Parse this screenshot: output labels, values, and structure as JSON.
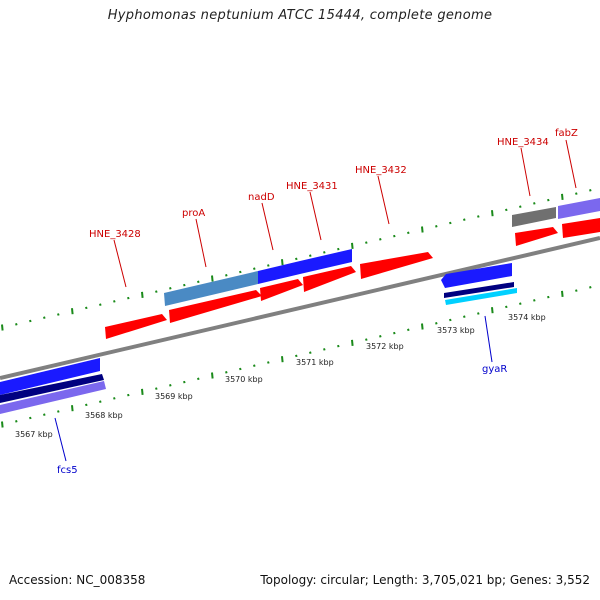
{
  "title": "Hyphomonas neptunium ATCC 15444, complete genome",
  "footer": {
    "accession": "Accession: NC_008358",
    "summary": "Topology: circular; Length: 3,705,021 bp; Genes: 3,552"
  },
  "colors": {
    "forward_cds": "#ff0000",
    "reverse_blue": "#1a1aff",
    "steel": "#4a8ac4",
    "gray": "#707070",
    "purple": "#7b68ee",
    "navy": "#000080",
    "cyan": "#00d0ff",
    "tick": "#1a8a1a",
    "forward_label": "#cc0000",
    "reverse_label": "#0000cc"
  },
  "kbp_labels": [
    "3567 kbp",
    "3568 kbp",
    "3569 kbp",
    "3570 kbp",
    "3571 kbp",
    "3572 kbp",
    "3573 kbp",
    "3574 kbp"
  ],
  "forward_genes": [
    "HNE_3428",
    "proA",
    "nadD",
    "HNE_3431",
    "HNE_3432",
    "HNE_3434",
    "fabZ"
  ],
  "reverse_genes": [
    "fcs5",
    "gyaR"
  ]
}
